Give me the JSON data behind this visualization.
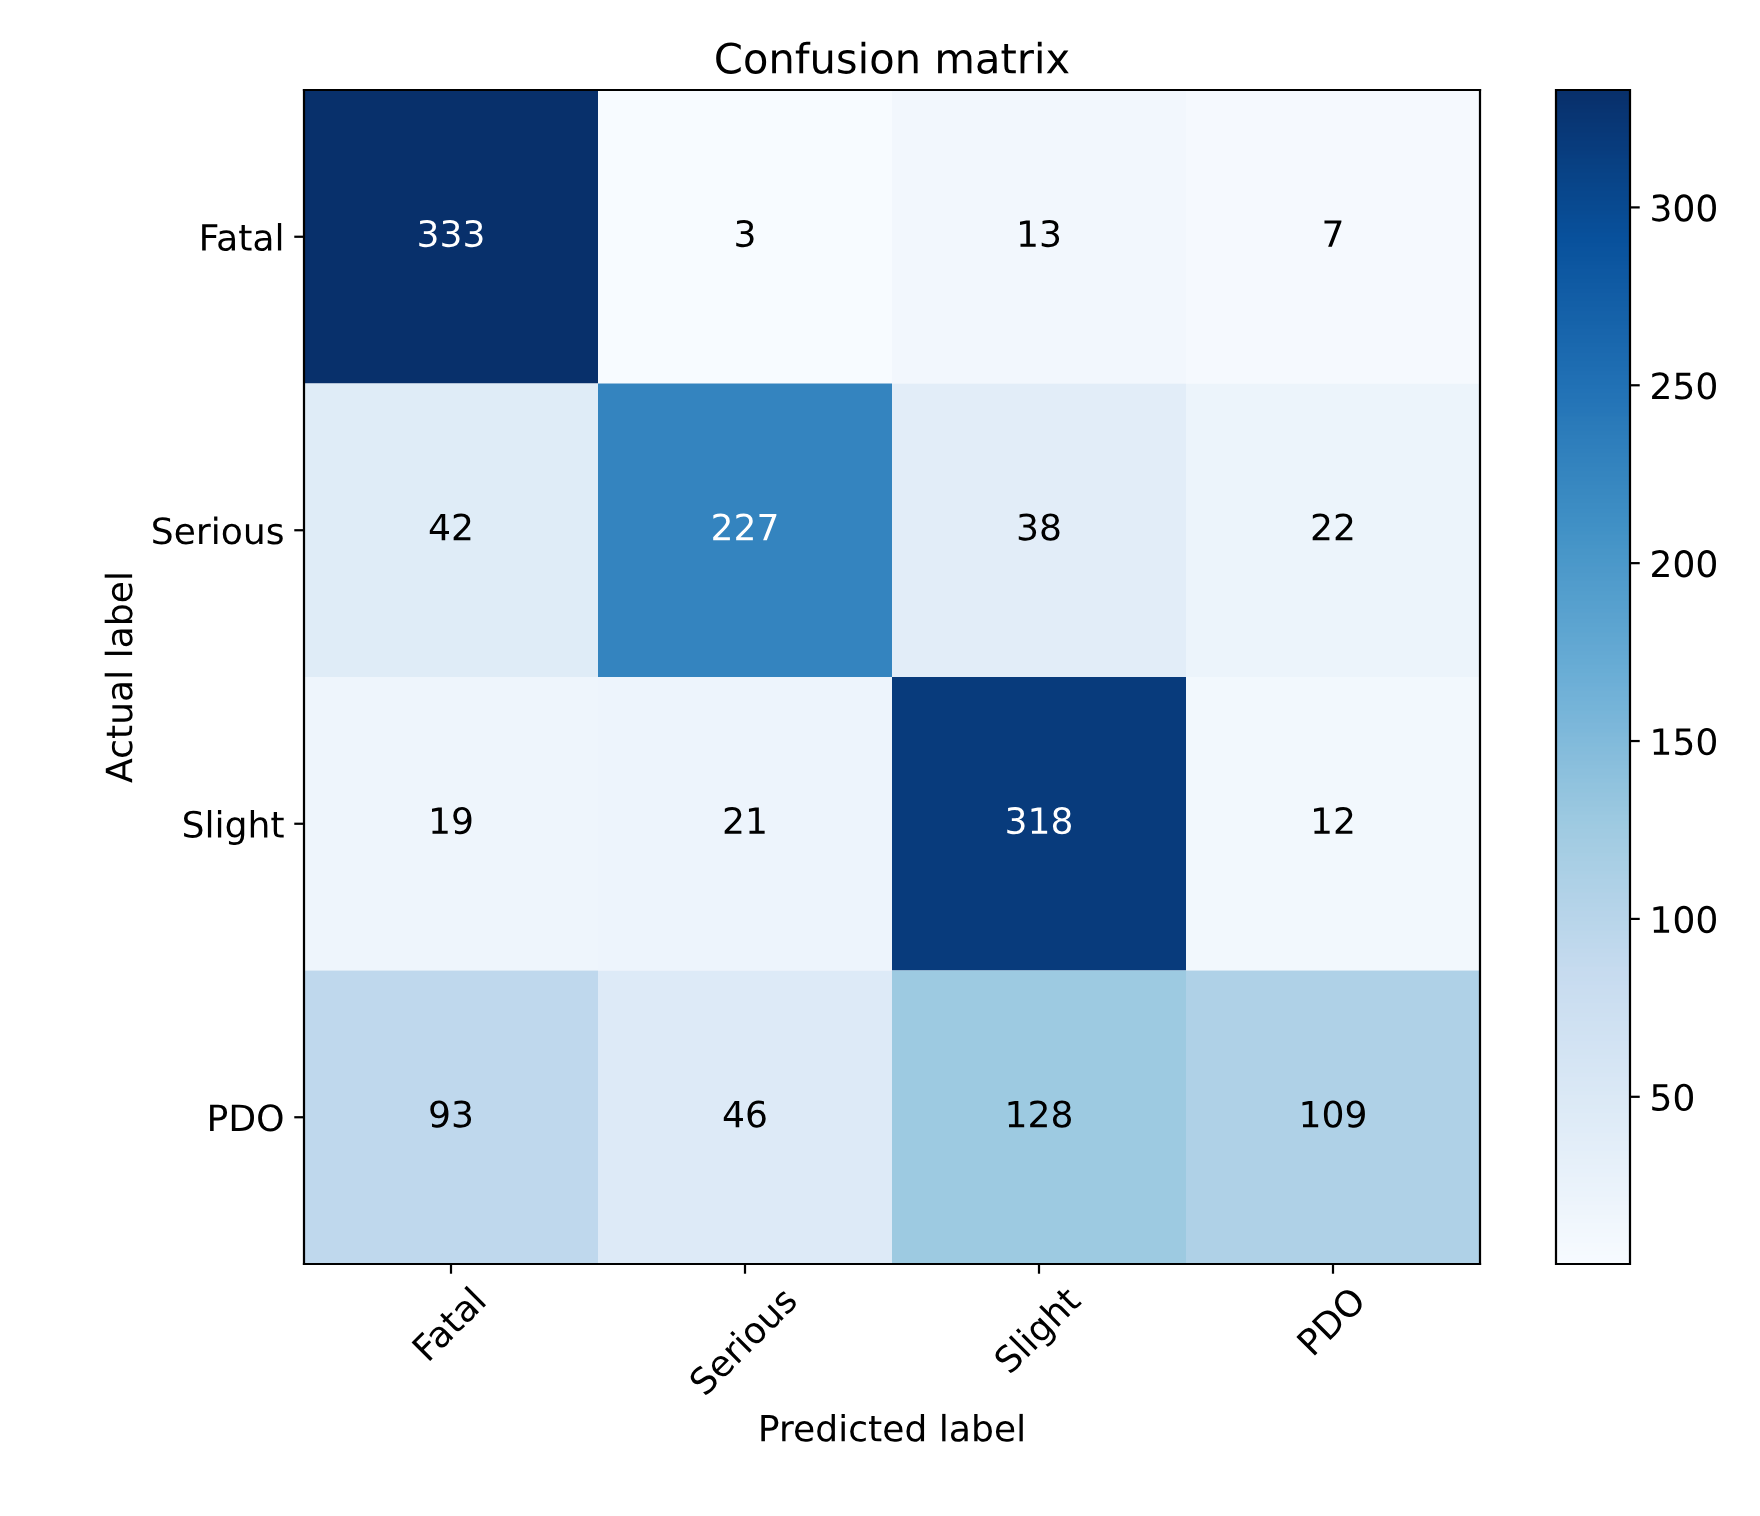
{
  "chart_data": {
    "type": "heatmap",
    "title": "Confusion matrix",
    "xlabel": "Predicted label",
    "ylabel": "Actual label",
    "categories": [
      "Fatal",
      "Serious",
      "Slight",
      "PDO"
    ],
    "y_categories": [
      "Fatal",
      "Serious",
      "Slight",
      "PDO"
    ],
    "cells": [
      [
        333,
        3,
        13,
        7
      ],
      [
        42,
        227,
        38,
        22
      ],
      [
        19,
        21,
        318,
        12
      ],
      [
        93,
        46,
        128,
        109
      ]
    ],
    "clim": [
      3,
      333
    ],
    "cticks": [
      50,
      100,
      150,
      200,
      250,
      300
    ],
    "data_labels": true
  }
}
